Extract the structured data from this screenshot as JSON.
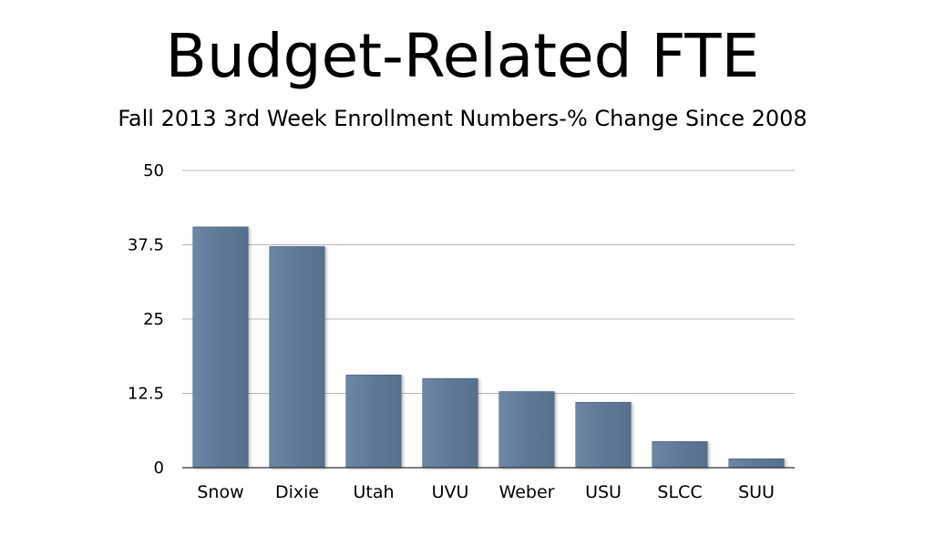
{
  "title": "Budget-Related FTE",
  "chart_data": {
    "type": "bar",
    "title": "Fall 2013 3rd Week Enrollment Numbers-% Change Since 2008",
    "categories": [
      "Snow",
      "Dixie",
      "Utah",
      "UVU",
      "Weber",
      "USU",
      "SLCC",
      "SUU"
    ],
    "values": [
      40.5,
      37.2,
      15.6,
      15.0,
      12.8,
      11.0,
      4.4,
      1.5
    ],
    "ylim": [
      0,
      50
    ],
    "yticks": [
      0,
      12.5,
      25,
      37.5,
      50
    ],
    "ytick_labels": [
      "0",
      "12.5",
      "25",
      "37.5",
      "50"
    ],
    "xlabel": "",
    "ylabel": "",
    "grid": true,
    "bar_color": "#5f7896"
  }
}
